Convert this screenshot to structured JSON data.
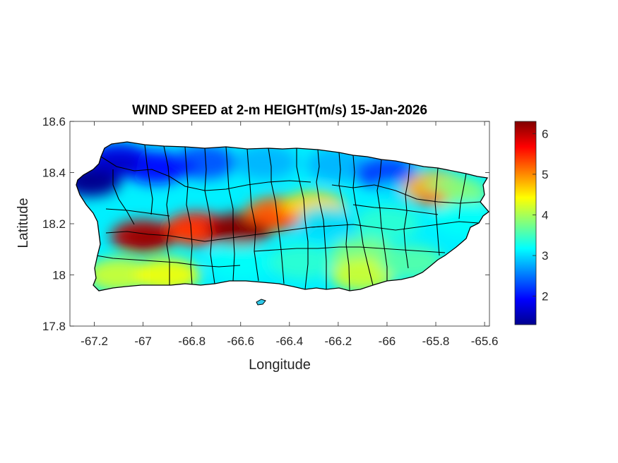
{
  "chart_data": {
    "type": "heatmap",
    "title": "WIND SPEED at 2-m HEIGHT(m/s) 15-Jan-2026",
    "xlabel": "Longitude",
    "ylabel": "Latitude",
    "xlim": [
      -67.3,
      -65.58
    ],
    "ylim": [
      17.8,
      18.6
    ],
    "x_ticks": [
      -67.2,
      -67.0,
      -66.8,
      -66.6,
      -66.4,
      -66.2,
      -66.0,
      -65.8,
      -65.6
    ],
    "x_tick_labels": [
      "-67.2",
      "-67",
      "-66.8",
      "-66.6",
      "-66.4",
      "-66.2",
      "-66",
      "-65.8",
      "-65.6"
    ],
    "y_ticks": [
      17.8,
      18.0,
      18.2,
      18.4,
      18.6
    ],
    "y_tick_labels": [
      "17.8",
      "18",
      "18.2",
      "18.4",
      "18.6"
    ],
    "colorbar": {
      "colormap": "jet",
      "range": [
        1.3,
        6.3
      ],
      "ticks": [
        2,
        3,
        4,
        5,
        6
      ],
      "tick_labels": [
        "2",
        "3",
        "4",
        "5",
        "6"
      ]
    },
    "grid": false,
    "region": "Puerto Rico",
    "field_samples": [
      {
        "lon": -67.22,
        "lat": 18.37,
        "value": 1.4
      },
      {
        "lon": -67.1,
        "lat": 18.45,
        "value": 1.8
      },
      {
        "lon": -66.95,
        "lat": 18.42,
        "value": 2.0
      },
      {
        "lon": -66.75,
        "lat": 18.44,
        "value": 2.3
      },
      {
        "lon": -66.5,
        "lat": 18.44,
        "value": 2.8
      },
      {
        "lon": -66.2,
        "lat": 18.43,
        "value": 2.8
      },
      {
        "lon": -66.0,
        "lat": 18.4,
        "value": 2.3
      },
      {
        "lon": -65.9,
        "lat": 18.35,
        "value": 3.0
      },
      {
        "lon": -65.8,
        "lat": 18.34,
        "value": 4.8
      },
      {
        "lon": -65.72,
        "lat": 18.32,
        "value": 3.8
      },
      {
        "lon": -65.68,
        "lat": 18.22,
        "value": 3.2
      },
      {
        "lon": -67.0,
        "lat": 18.15,
        "value": 6.0
      },
      {
        "lon": -66.78,
        "lat": 18.18,
        "value": 5.6
      },
      {
        "lon": -66.6,
        "lat": 18.18,
        "value": 6.2
      },
      {
        "lon": -66.45,
        "lat": 18.24,
        "value": 5.2
      },
      {
        "lon": -66.3,
        "lat": 18.26,
        "value": 4.6
      },
      {
        "lon": -67.1,
        "lat": 18.0,
        "value": 4.2
      },
      {
        "lon": -66.9,
        "lat": 18.0,
        "value": 4.4
      },
      {
        "lon": -66.6,
        "lat": 18.05,
        "value": 3.2
      },
      {
        "lon": -66.35,
        "lat": 18.05,
        "value": 3.4
      },
      {
        "lon": -66.1,
        "lat": 18.08,
        "value": 3.8
      },
      {
        "lon": -66.1,
        "lat": 18.0,
        "value": 4.2
      },
      {
        "lon": -65.9,
        "lat": 18.05,
        "value": 3.6
      },
      {
        "lon": -66.25,
        "lat": 18.2,
        "value": 3.0
      },
      {
        "lon": -66.0,
        "lat": 18.2,
        "value": 3.4
      }
    ]
  }
}
